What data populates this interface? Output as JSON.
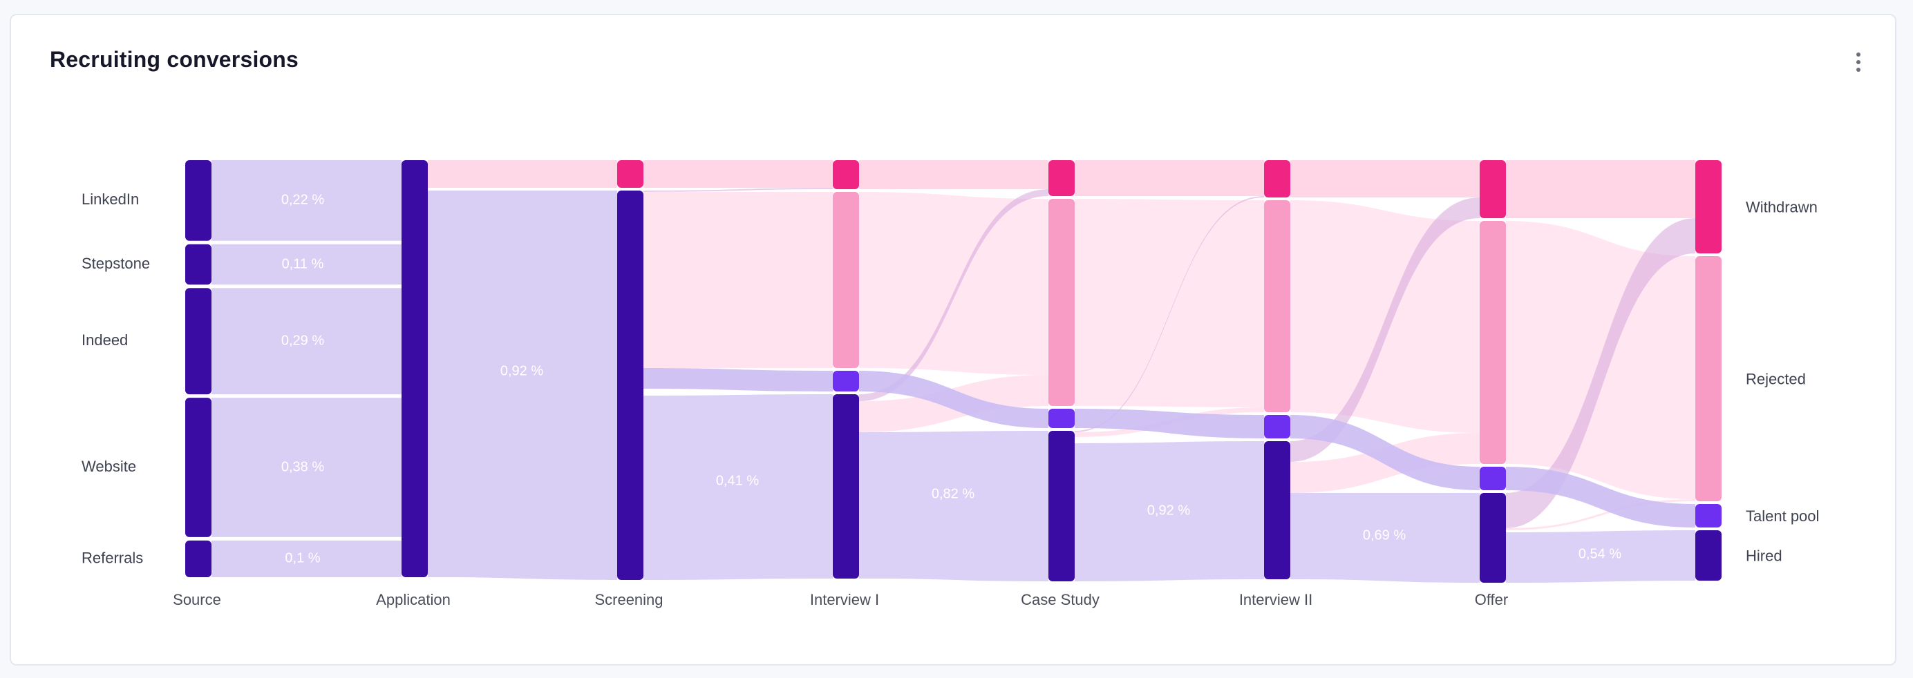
{
  "header": {
    "title": "Recruiting conversions",
    "menu_icon": "more-vertical-icon"
  },
  "colors": {
    "hired": "#3a0ca3",
    "talent_pool": "#6d2ff0",
    "rejected": "#f89cc6",
    "withdrawn": "#f02483",
    "flow_main": "#d9cff5",
    "flow_rejected": "#ffe3ef",
    "flow_withdrawn": "#ffd1e3"
  },
  "chart_data": {
    "type": "sankey",
    "title": "Recruiting conversions",
    "stages": [
      "Source",
      "Application",
      "Screening",
      "Interview I",
      "Case Study",
      "Interview II",
      "Offer"
    ],
    "sources": [
      {
        "name": "LinkedIn",
        "value": 0.22,
        "label": "0,22 %"
      },
      {
        "name": "Stepstone",
        "value": 0.11,
        "label": "0,11 %"
      },
      {
        "name": "Indeed",
        "value": 0.29,
        "label": "0,29 %"
      },
      {
        "name": "Website",
        "value": 0.38,
        "label": "0,38 %"
      },
      {
        "name": "Referrals",
        "value": 0.1,
        "label": "0,1 %"
      }
    ],
    "outcomes": [
      "Withdrawn",
      "Rejected",
      "Talent pool",
      "Hired"
    ],
    "conversions": [
      {
        "from": "Application",
        "to": "Screening",
        "value": 0.92,
        "label": "0,92 %"
      },
      {
        "from": "Screening",
        "to": "Interview I",
        "value": 0.41,
        "label": "0,41 %"
      },
      {
        "from": "Interview I",
        "to": "Case Study",
        "value": 0.82,
        "label": "0,82 %"
      },
      {
        "from": "Case Study",
        "to": "Interview II",
        "value": 0.92,
        "label": "0,92 %"
      },
      {
        "from": "Interview II",
        "to": "Offer",
        "value": 0.69,
        "label": "0,69 %"
      },
      {
        "from": "Offer",
        "to": "Hired",
        "value": 0.54,
        "label": "0,54 %"
      }
    ]
  }
}
